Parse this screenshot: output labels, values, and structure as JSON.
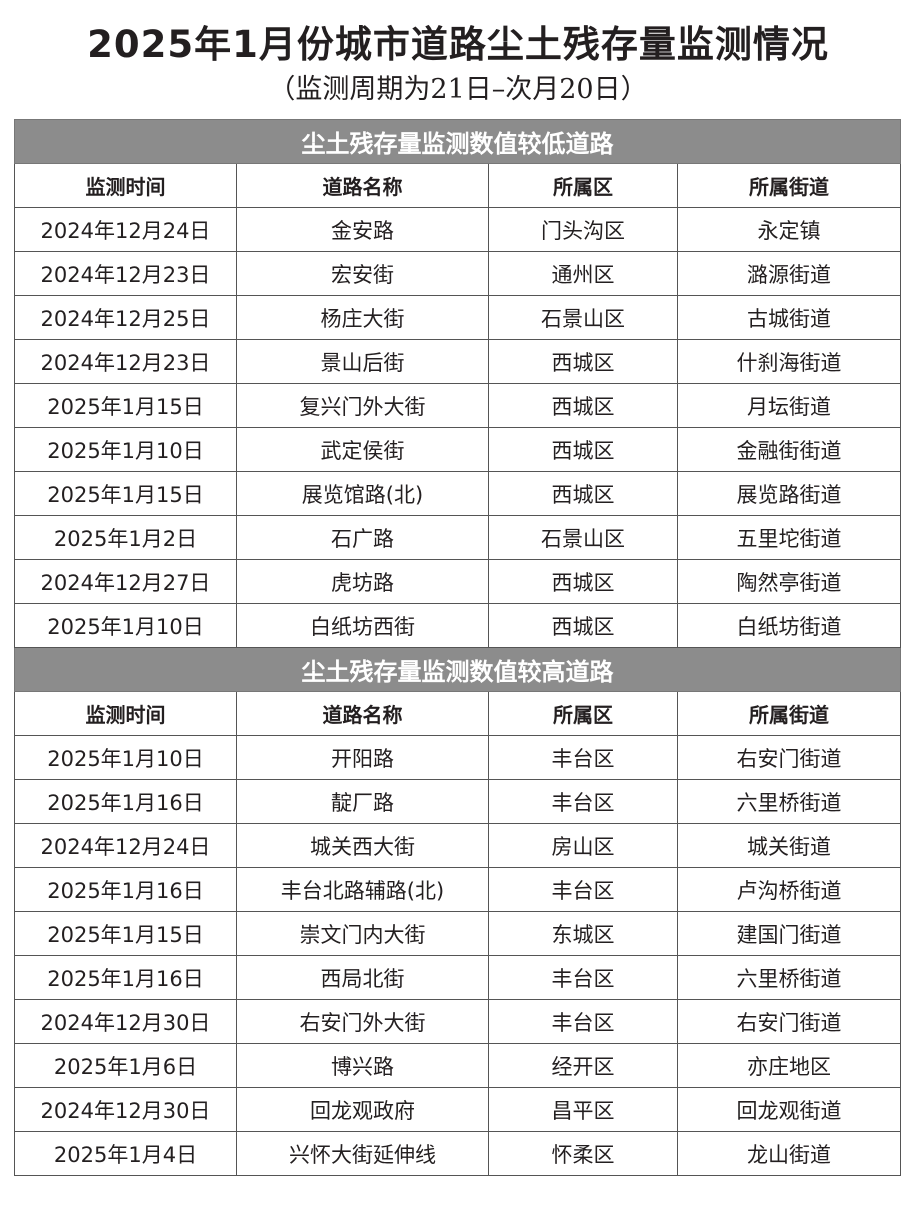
{
  "title": "2025年1月份城市道路尘土残存量监测情况",
  "subtitle": "（监测周期为21日–次月20日）",
  "columns": [
    "监测时间",
    "道路名称",
    "所属区",
    "所属街道"
  ],
  "sections": [
    {
      "heading": "尘土残存量监测数值较低道路",
      "rows": [
        [
          "2024年12月24日",
          "金安路",
          "门头沟区",
          "永定镇"
        ],
        [
          "2024年12月23日",
          "宏安街",
          "通州区",
          "潞源街道"
        ],
        [
          "2024年12月25日",
          "杨庄大街",
          "石景山区",
          "古城街道"
        ],
        [
          "2024年12月23日",
          "景山后街",
          "西城区",
          "什刹海街道"
        ],
        [
          "2025年1月15日",
          "复兴门外大街",
          "西城区",
          "月坛街道"
        ],
        [
          "2025年1月10日",
          "武定侯街",
          "西城区",
          "金融街街道"
        ],
        [
          "2025年1月15日",
          "展览馆路(北)",
          "西城区",
          "展览路街道"
        ],
        [
          "2025年1月2日",
          "石广路",
          "石景山区",
          "五里坨街道"
        ],
        [
          "2024年12月27日",
          "虎坊路",
          "西城区",
          "陶然亭街道"
        ],
        [
          "2025年1月10日",
          "白纸坊西街",
          "西城区",
          "白纸坊街道"
        ]
      ]
    },
    {
      "heading": "尘土残存量监测数值较高道路",
      "rows": [
        [
          "2025年1月10日",
          "开阳路",
          "丰台区",
          "右安门街道"
        ],
        [
          "2025年1月16日",
          "靛厂路",
          "丰台区",
          "六里桥街道"
        ],
        [
          "2024年12月24日",
          "城关西大街",
          "房山区",
          "城关街道"
        ],
        [
          "2025年1月16日",
          "丰台北路辅路(北)",
          "丰台区",
          "卢沟桥街道"
        ],
        [
          "2025年1月15日",
          "崇文门内大街",
          "东城区",
          "建国门街道"
        ],
        [
          "2025年1月16日",
          "西局北街",
          "丰台区",
          "六里桥街道"
        ],
        [
          "2024年12月30日",
          "右安门外大街",
          "丰台区",
          "右安门街道"
        ],
        [
          "2025年1月6日",
          "博兴路",
          "经开区",
          "亦庄地区"
        ],
        [
          "2024年12月30日",
          "回龙观政府",
          "昌平区",
          "回龙观街道"
        ],
        [
          "2025年1月4日",
          "兴怀大街延伸线",
          "怀柔区",
          "龙山街道"
        ]
      ]
    }
  ]
}
